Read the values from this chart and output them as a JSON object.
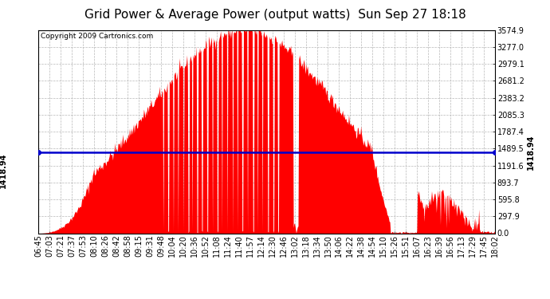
{
  "title": "Grid Power & Average Power (output watts)  Sun Sep 27 18:18",
  "copyright": "Copyright 2009 Cartronics.com",
  "avg_power": 1418.94,
  "yticks": [
    0.0,
    297.9,
    595.8,
    893.7,
    1191.6,
    1489.5,
    1787.4,
    2085.3,
    2383.2,
    2681.2,
    2979.1,
    3277.0,
    3574.9
  ],
  "ymax": 3574.9,
  "bar_color": "#ff0000",
  "avg_line_color": "#0000cc",
  "background_color": "#ffffff",
  "plot_bg_color": "#ffffff",
  "grid_color": "#b0b0b0",
  "title_color": "#000000",
  "xtick_labels": [
    "06:45",
    "07:03",
    "07:21",
    "07:37",
    "07:53",
    "08:10",
    "08:26",
    "08:42",
    "08:58",
    "09:15",
    "09:31",
    "09:48",
    "10:04",
    "10:20",
    "10:36",
    "10:52",
    "11:08",
    "11:24",
    "11:40",
    "11:57",
    "12:14",
    "12:30",
    "12:46",
    "13:02",
    "13:18",
    "13:34",
    "13:50",
    "14:06",
    "14:22",
    "14:38",
    "14:54",
    "15:10",
    "15:26",
    "15:51",
    "16:07",
    "16:23",
    "16:39",
    "16:56",
    "17:13",
    "17:29",
    "17:45",
    "18:02"
  ],
  "title_fontsize": 11,
  "tick_fontsize": 7,
  "copyright_fontsize": 6.5,
  "avg_label_fontsize": 7
}
